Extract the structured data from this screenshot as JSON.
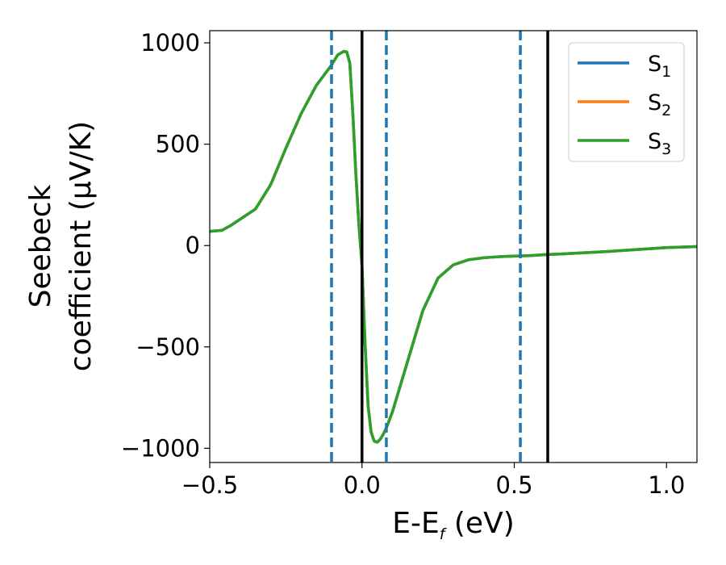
{
  "chart_data": {
    "type": "line",
    "xlabel": {
      "main": "E-E",
      "sub": "f",
      "suffix": " (eV)"
    },
    "ylabel": {
      "line1": "Seebeck",
      "line2": "coefficient  (μV/K)"
    },
    "xlim": [
      -0.5,
      1.1
    ],
    "ylim": [
      -1070,
      1060
    ],
    "xticks": [
      {
        "value": -0.5,
        "label": "−0.5"
      },
      {
        "value": 0.0,
        "label": "0.0"
      },
      {
        "value": 0.5,
        "label": "0.5"
      },
      {
        "value": 1.0,
        "label": "1.0"
      }
    ],
    "yticks": [
      {
        "value": 1000,
        "label": "1000"
      },
      {
        "value": 500,
        "label": "500"
      },
      {
        "value": 0,
        "label": "0"
      },
      {
        "value": -500,
        "label": "−500"
      },
      {
        "value": -1000,
        "label": "−1000"
      }
    ],
    "grid": false,
    "legend_position": "top-right",
    "legend": [
      {
        "base": "S",
        "sub": "1",
        "color": "#1f77b4"
      },
      {
        "base": "S",
        "sub": "2",
        "color": "#ff7f0e"
      },
      {
        "base": "S",
        "sub": "3",
        "color": "#2ca02c"
      }
    ],
    "series": [
      {
        "name": "S1",
        "color": "#1f77b4",
        "x": [
          -0.5,
          -0.46,
          -0.43,
          -0.4,
          -0.35,
          -0.3,
          -0.25,
          -0.2,
          -0.15,
          -0.1,
          -0.08,
          -0.06,
          -0.05,
          -0.04,
          -0.03,
          -0.02,
          -0.01,
          0,
          0.01,
          0.02,
          0.03,
          0.04,
          0.05,
          0.06,
          0.07,
          0.08,
          0.1,
          0.15,
          0.2,
          0.25,
          0.3,
          0.35,
          0.4,
          0.45,
          0.5,
          0.55,
          0.6,
          0.65,
          0.7,
          0.8,
          0.9,
          1.0,
          1.1
        ],
        "y": [
          70,
          75,
          100,
          130,
          180,
          300,
          480,
          650,
          790,
          890,
          940,
          958,
          955,
          900,
          650,
          350,
          100,
          -100,
          -480,
          -790,
          -920,
          -965,
          -970,
          -955,
          -930,
          -900,
          -820,
          -570,
          -320,
          -160,
          -95,
          -70,
          -60,
          -55,
          -52,
          -50,
          -45,
          -42,
          -38,
          -30,
          -20,
          -10,
          -5
        ]
      },
      {
        "name": "S2",
        "color": "#ff7f0e",
        "x": [
          -0.5,
          -0.46,
          -0.43,
          -0.4,
          -0.35,
          -0.3,
          -0.25,
          -0.2,
          -0.15,
          -0.1,
          -0.08,
          -0.06,
          -0.05,
          -0.04,
          -0.03,
          -0.02,
          -0.01,
          0,
          0.01,
          0.02,
          0.03,
          0.04,
          0.05,
          0.06,
          0.07,
          0.08,
          0.1,
          0.15,
          0.2,
          0.25,
          0.3,
          0.35,
          0.4,
          0.45,
          0.5,
          0.55,
          0.6,
          0.65,
          0.7,
          0.8,
          0.9,
          1.0,
          1.1
        ],
        "y": [
          70,
          75,
          100,
          130,
          180,
          300,
          480,
          650,
          790,
          890,
          940,
          958,
          955,
          900,
          650,
          350,
          100,
          -100,
          -480,
          -790,
          -920,
          -965,
          -970,
          -955,
          -930,
          -900,
          -820,
          -570,
          -320,
          -160,
          -95,
          -70,
          -60,
          -55,
          -52,
          -50,
          -45,
          -42,
          -38,
          -30,
          -20,
          -10,
          -5
        ]
      },
      {
        "name": "S3",
        "color": "#2ca02c",
        "x": [
          -0.5,
          -0.46,
          -0.43,
          -0.4,
          -0.35,
          -0.3,
          -0.25,
          -0.2,
          -0.15,
          -0.1,
          -0.08,
          -0.06,
          -0.05,
          -0.04,
          -0.03,
          -0.02,
          -0.01,
          0,
          0.01,
          0.02,
          0.03,
          0.04,
          0.05,
          0.06,
          0.07,
          0.08,
          0.1,
          0.15,
          0.2,
          0.25,
          0.3,
          0.35,
          0.4,
          0.45,
          0.5,
          0.55,
          0.6,
          0.65,
          0.7,
          0.8,
          0.9,
          1.0,
          1.1
        ],
        "y": [
          70,
          75,
          100,
          130,
          180,
          300,
          480,
          650,
          790,
          890,
          940,
          958,
          955,
          900,
          650,
          350,
          100,
          -100,
          -480,
          -790,
          -920,
          -965,
          -970,
          -955,
          -930,
          -900,
          -820,
          -570,
          -320,
          -160,
          -95,
          -70,
          -60,
          -55,
          -52,
          -50,
          -45,
          -42,
          -38,
          -30,
          -20,
          -10,
          -5
        ]
      }
    ],
    "vlines": [
      {
        "x": -0.1,
        "style": "dashed",
        "color": "#1f77b4"
      },
      {
        "x": 0.0,
        "style": "solid",
        "color": "#000000"
      },
      {
        "x": 0.08,
        "style": "dashed",
        "color": "#1f77b4"
      },
      {
        "x": 0.52,
        "style": "dashed",
        "color": "#1f77b4"
      },
      {
        "x": 0.61,
        "style": "solid",
        "color": "#000000"
      }
    ]
  }
}
